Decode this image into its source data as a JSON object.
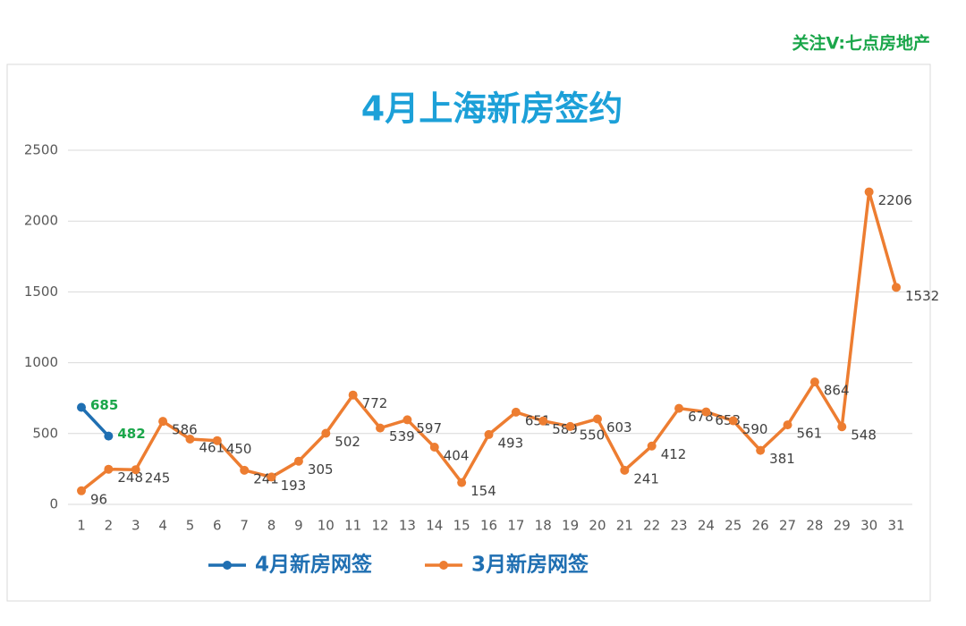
{
  "annotation": "关注V:七点房地产",
  "chart_data": {
    "type": "line",
    "title": "4月上海新房签约",
    "categories": [
      "1",
      "2",
      "3",
      "4",
      "5",
      "6",
      "7",
      "8",
      "9",
      "10",
      "11",
      "12",
      "13",
      "14",
      "15",
      "16",
      "17",
      "18",
      "19",
      "20",
      "21",
      "22",
      "23",
      "24",
      "25",
      "26",
      "27",
      "28",
      "29",
      "30",
      "31"
    ],
    "series": [
      {
        "name": "4月新房网签",
        "color": "#1f6fb2",
        "label_color": "#1aa64a",
        "values": [
          685,
          482,
          null,
          null,
          null,
          null,
          null,
          null,
          null,
          null,
          null,
          null,
          null,
          null,
          null,
          null,
          null,
          null,
          null,
          null,
          null,
          null,
          null,
          null,
          null,
          null,
          null,
          null,
          null,
          null,
          null
        ]
      },
      {
        "name": "3月新房网签",
        "color": "#ed7d31",
        "label_color": "#404040",
        "values": [
          96,
          248,
          245,
          586,
          461,
          450,
          241,
          193,
          305,
          502,
          772,
          539,
          597,
          404,
          154,
          493,
          651,
          589,
          550,
          603,
          241,
          412,
          678,
          653,
          590,
          381,
          561,
          864,
          548,
          2206,
          1532
        ]
      }
    ],
    "ylim": [
      0,
      2500
    ],
    "yticks": [
      0,
      500,
      1000,
      1500,
      2000,
      2500
    ],
    "grid": true,
    "legend": "bottom"
  }
}
